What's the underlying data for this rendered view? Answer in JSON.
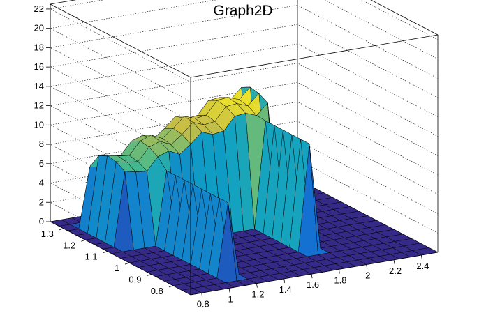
{
  "chart_data": {
    "type": "surface3d",
    "title": "Graph2D",
    "xlabel": "",
    "ylabel": "",
    "zlabel": "",
    "x_ticks": [
      "0.8",
      "1",
      "1.2",
      "1.4",
      "1.6",
      "1.8",
      "2",
      "2.2",
      "2.4"
    ],
    "y_ticks": [
      "0.8",
      "0.9",
      "1",
      "1.1",
      "1.2",
      "1.3"
    ],
    "z_ticks": [
      "0",
      "2",
      "4",
      "6",
      "8",
      "10",
      "12",
      "14",
      "16",
      "18",
      "20",
      "22"
    ],
    "xlim": [
      0.72,
      2.52
    ],
    "ylim": [
      0.72,
      1.36
    ],
    "zlim": [
      0,
      22.5
    ],
    "grid": true,
    "colormap": "viridis-like (blue to yellow)",
    "surface": {
      "x_grid": [
        0.72,
        0.8,
        0.88,
        0.96,
        1.04,
        1.12,
        1.2,
        1.28,
        1.36,
        1.44,
        1.52,
        1.6,
        1.68,
        1.76,
        1.84,
        1.92,
        2.0,
        2.08,
        2.16,
        2.24,
        2.32,
        2.4,
        2.52
      ],
      "y_grid": [
        0.72,
        0.76,
        0.8,
        0.84,
        0.88,
        0.92,
        0.96,
        1.0,
        1.04,
        1.08,
        1.12,
        1.16,
        1.2,
        1.24,
        1.28,
        1.32,
        1.36
      ],
      "plateau": {
        "x_range": [
          0.86,
          1.94
        ],
        "y_range": [
          1.09,
          1.3
        ],
        "height_at_xmin": 7.3,
        "height_at_xmax": 12.5,
        "left_wall_x": 1.15,
        "left_wall_y_range": [
          0.79,
          1.09
        ],
        "right_wall_x": 1.81,
        "right_wall_y_range": [
          0.86,
          1.09
        ]
      },
      "base_height": 0
    }
  }
}
